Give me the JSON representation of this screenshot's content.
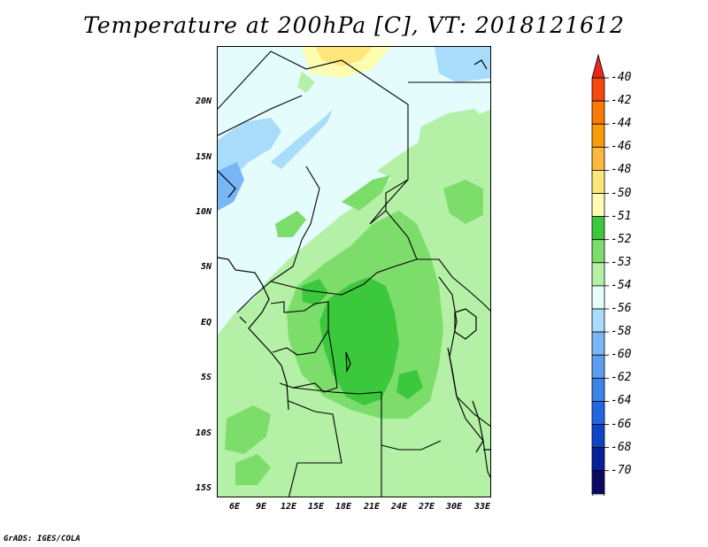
{
  "title": "Temperature at 200hPa [C], VT: 2018121612",
  "credit": "GrADS: IGES/COLA",
  "latitude_labels": [
    "20N",
    "15N",
    "10N",
    "5N",
    "EQ",
    "5S",
    "10S",
    "15S"
  ],
  "longitude_labels": [
    "6E",
    "9E",
    "12E",
    "15E",
    "18E",
    "21E",
    "24E",
    "27E",
    "30E",
    "33E"
  ],
  "colorbar": {
    "labels": [
      "-40",
      "-42",
      "-44",
      "-46",
      "-48",
      "-50",
      "-51",
      "-52",
      "-53",
      "-54",
      "-56",
      "-58",
      "-60",
      "-62",
      "-64",
      "-66",
      "-68",
      "-70"
    ],
    "colors": [
      "#e8271c",
      "#f5470f",
      "#f97a05",
      "#fb9b07",
      "#fcb83f",
      "#fee57c",
      "#fefcb0",
      "#3cc83c",
      "#7ddd6b",
      "#b4f0a6",
      "#e4fcfc",
      "#a8dcfa",
      "#79b6f5",
      "#5c9ef0",
      "#3d84ea",
      "#2466e1",
      "#0d46c9",
      "#08209a",
      "#0a0a63",
      "#e0d8fa"
    ]
  },
  "map": {
    "background_color": "#e4fcfc",
    "field_colors": {
      "warm_peak": "#fee57c",
      "warm_ring": "#fefcb0",
      "core": "#3cc83c",
      "mid": "#7ddd6b",
      "light": "#b4f0a6",
      "cool": "#a8dcfa",
      "lake": "#79b6f5"
    }
  }
}
